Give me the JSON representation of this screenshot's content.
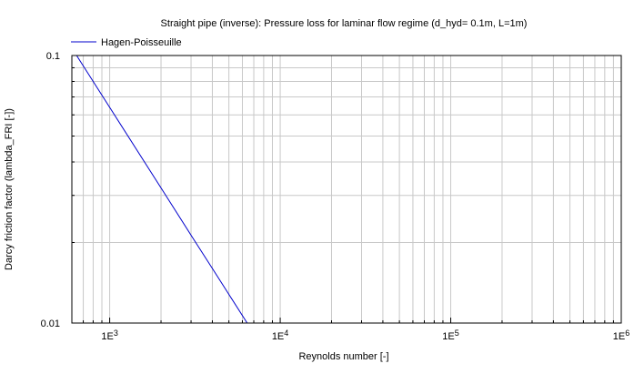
{
  "chart_data": {
    "type": "line",
    "title": "Straight pipe (inverse): Pressure loss for laminar flow regime (d_hyd= 0.1m, L=1m)",
    "xlabel": "Reynolds number [-]",
    "ylabel": "Darcy friction factor (lambda_FRI [-])",
    "x_scale": "log",
    "y_scale": "log",
    "xlim": [
      600,
      1000000
    ],
    "ylim": [
      0.01,
      0.1
    ],
    "x_ticks": [
      {
        "value": 1000,
        "label": "1E3"
      },
      {
        "value": 10000,
        "label": "1E4"
      },
      {
        "value": 100000,
        "label": "1E5"
      },
      {
        "value": 1000000,
        "label": "1E6"
      }
    ],
    "y_ticks": [
      {
        "value": 0.1,
        "label": "0.1"
      },
      {
        "value": 0.01,
        "label": "0.01"
      }
    ],
    "grid": true,
    "legend_position": "top-left",
    "series": [
      {
        "name": "Hagen-Poisseuille",
        "color": "#0000cc",
        "x": [
          640,
          1000,
          2000,
          3000,
          4000,
          5000,
          6400
        ],
        "y": [
          0.1,
          0.064,
          0.032,
          0.0213,
          0.016,
          0.0128,
          0.01
        ]
      }
    ]
  }
}
